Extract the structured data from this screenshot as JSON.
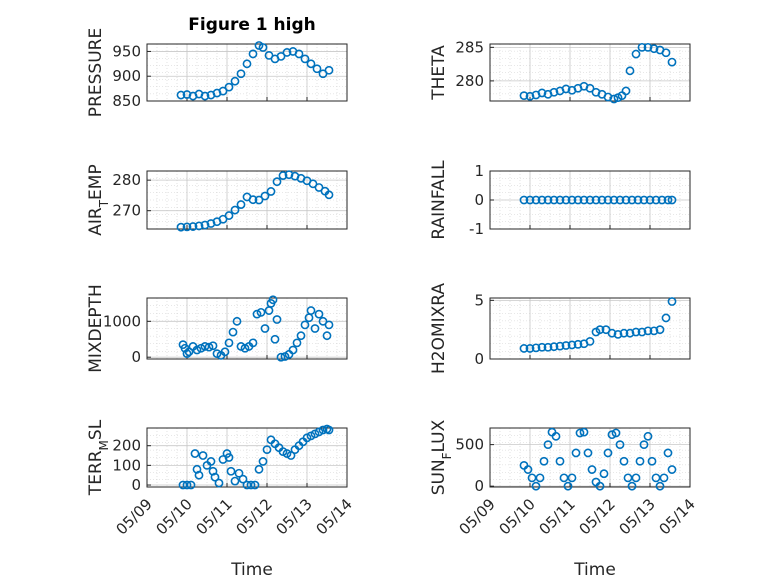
{
  "figure": {
    "title": "Figure 1 high",
    "marker_color": "#0072BD",
    "x_ticks": [
      "05/09",
      "05/10",
      "05/11",
      "05/12",
      "05/13",
      "05/14"
    ],
    "x_label": "Time"
  },
  "chart_data": [
    {
      "type": "scatter",
      "ylabel": "PRESSURE",
      "ylim": [
        850,
        965
      ],
      "yticks": [
        "850",
        "900",
        "950"
      ],
      "xlim": [
        0,
        5
      ],
      "x": [
        0.85,
        1.0,
        1.15,
        1.3,
        1.45,
        1.6,
        1.75,
        1.9,
        2.05,
        2.2,
        2.35,
        2.5,
        2.65,
        2.8,
        2.9,
        3.05,
        3.2,
        3.35,
        3.5,
        3.65,
        3.8,
        3.95,
        4.1,
        4.25,
        4.4,
        4.55
      ],
      "y": [
        862,
        863,
        860,
        864,
        860,
        862,
        866,
        870,
        878,
        890,
        905,
        925,
        945,
        962,
        958,
        942,
        935,
        940,
        948,
        950,
        945,
        935,
        925,
        915,
        905,
        912
      ]
    },
    {
      "type": "scatter",
      "ylabel": "THETA",
      "ylim": [
        277,
        285.5
      ],
      "yticks": [
        "280",
        "285"
      ],
      "xlim": [
        0,
        5
      ],
      "x": [
        0.85,
        1.0,
        1.15,
        1.3,
        1.45,
        1.6,
        1.75,
        1.9,
        2.05,
        2.2,
        2.35,
        2.5,
        2.65,
        2.8,
        2.95,
        3.1,
        3.2,
        3.3,
        3.4,
        3.5,
        3.65,
        3.8,
        3.95,
        4.1,
        4.25,
        4.4,
        4.55
      ],
      "y": [
        277.8,
        277.7,
        277.9,
        278.2,
        278.0,
        278.3,
        278.5,
        278.8,
        278.6,
        278.9,
        279.2,
        278.9,
        278.3,
        278.0,
        277.6,
        277.3,
        277.5,
        277.8,
        278.5,
        281.5,
        284.0,
        285.0,
        285.0,
        284.8,
        284.6,
        284.2,
        282.8
      ]
    },
    {
      "type": "scatter",
      "ylabel": "AIR_TEMP",
      "ylim": [
        264,
        283
      ],
      "yticks": [
        "270",
        "280"
      ],
      "xlim": [
        0,
        5
      ],
      "x": [
        0.85,
        1.0,
        1.15,
        1.3,
        1.45,
        1.6,
        1.75,
        1.9,
        2.05,
        2.2,
        2.35,
        2.5,
        2.65,
        2.8,
        2.95,
        3.1,
        3.25,
        3.4,
        3.55,
        3.7,
        3.85,
        4.0,
        4.15,
        4.3,
        4.45,
        4.55
      ],
      "y": [
        264.6,
        264.7,
        264.8,
        265.0,
        265.3,
        265.8,
        266.4,
        267.2,
        268.4,
        270.2,
        272.0,
        274.5,
        273.6,
        273.5,
        274.8,
        276.3,
        279.5,
        281.5,
        281.8,
        281.3,
        280.6,
        279.8,
        278.8,
        277.6,
        276.4,
        275.2
      ]
    },
    {
      "type": "scatter",
      "ylabel": "RAINFALL",
      "ylim": [
        -1,
        1
      ],
      "yticks": [
        "-1",
        "0",
        "1"
      ],
      "xlim": [
        0,
        5
      ],
      "x": [
        0.85,
        1.0,
        1.15,
        1.3,
        1.45,
        1.6,
        1.75,
        1.9,
        2.05,
        2.2,
        2.35,
        2.5,
        2.65,
        2.8,
        2.95,
        3.1,
        3.25,
        3.4,
        3.55,
        3.7,
        3.85,
        4.0,
        4.15,
        4.3,
        4.45,
        4.55
      ],
      "y": [
        0,
        0,
        0,
        0,
        0,
        0,
        0,
        0,
        0,
        0,
        0,
        0,
        0,
        0,
        0,
        0,
        0,
        0,
        0,
        0,
        0,
        0,
        0,
        0,
        0,
        0
      ]
    },
    {
      "type": "scatter",
      "ylabel": "MIXDEPTH",
      "ylim": [
        -50,
        1650
      ],
      "yticks": [
        "0",
        "1000"
      ],
      "xlim": [
        0,
        5
      ],
      "x": [
        0.9,
        0.95,
        1.0,
        1.05,
        1.15,
        1.25,
        1.35,
        1.45,
        1.55,
        1.65,
        1.75,
        1.85,
        1.95,
        2.05,
        2.15,
        2.25,
        2.35,
        2.45,
        2.55,
        2.65,
        2.75,
        2.85,
        2.95,
        3.05,
        3.1,
        3.15,
        3.2,
        3.25,
        3.35,
        3.45,
        3.55,
        3.65,
        3.75,
        3.85,
        3.95,
        4.05,
        4.1,
        4.2,
        4.3,
        4.4,
        4.5,
        4.55
      ],
      "y": [
        350,
        250,
        100,
        150,
        300,
        200,
        250,
        300,
        280,
        320,
        100,
        50,
        150,
        400,
        700,
        1000,
        300,
        250,
        300,
        400,
        1200,
        1250,
        800,
        1300,
        1500,
        1600,
        500,
        1050,
        0,
        20,
        80,
        200,
        400,
        600,
        900,
        1100,
        1300,
        800,
        1200,
        1000,
        600,
        900
      ]
    },
    {
      "type": "scatter",
      "ylabel": "H2OMIXRA",
      "ylim": [
        0,
        5.2
      ],
      "yticks": [
        "0",
        "5"
      ],
      "xlim": [
        0,
        5
      ],
      "x": [
        0.85,
        1.0,
        1.15,
        1.3,
        1.45,
        1.6,
        1.75,
        1.9,
        2.05,
        2.2,
        2.35,
        2.5,
        2.65,
        2.75,
        2.9,
        3.05,
        3.2,
        3.35,
        3.5,
        3.65,
        3.8,
        3.95,
        4.1,
        4.25,
        4.4,
        4.55
      ],
      "y": [
        0.9,
        0.9,
        0.95,
        1.0,
        1.0,
        1.05,
        1.1,
        1.15,
        1.2,
        1.25,
        1.3,
        1.5,
        2.3,
        2.5,
        2.5,
        2.2,
        2.1,
        2.2,
        2.2,
        2.3,
        2.3,
        2.4,
        2.4,
        2.5,
        3.5,
        4.9
      ]
    },
    {
      "type": "scatter",
      "ylabel": "TERR_MSL",
      "ylim": [
        -10,
        290
      ],
      "yticks": [
        "0",
        "100",
        "200"
      ],
      "xlim": [
        0,
        5
      ],
      "x": [
        0.9,
        1.0,
        1.1,
        1.2,
        1.25,
        1.3,
        1.4,
        1.5,
        1.6,
        1.65,
        1.7,
        1.8,
        1.9,
        2.0,
        2.05,
        2.1,
        2.2,
        2.3,
        2.4,
        2.5,
        2.6,
        2.7,
        2.8,
        2.9,
        3.0,
        3.1,
        3.2,
        3.3,
        3.4,
        3.5,
        3.6,
        3.7,
        3.8,
        3.9,
        4.0,
        4.1,
        4.2,
        4.3,
        4.4,
        4.5,
        4.55
      ],
      "y": [
        0,
        0,
        0,
        160,
        80,
        50,
        150,
        100,
        120,
        70,
        40,
        10,
        130,
        160,
        140,
        70,
        20,
        60,
        30,
        0,
        0,
        0,
        80,
        120,
        180,
        230,
        210,
        190,
        170,
        160,
        150,
        180,
        200,
        220,
        240,
        250,
        260,
        270,
        280,
        285,
        280
      ]
    },
    {
      "type": "scatter",
      "ylabel": "SUN_FLUX",
      "ylim": [
        -10,
        700
      ],
      "yticks": [
        "0",
        "500"
      ],
      "xlim": [
        0,
        5
      ],
      "x": [
        0.85,
        0.95,
        1.05,
        1.15,
        1.25,
        1.35,
        1.45,
        1.55,
        1.65,
        1.75,
        1.85,
        1.95,
        2.05,
        2.15,
        2.25,
        2.35,
        2.45,
        2.55,
        2.65,
        2.75,
        2.85,
        2.95,
        3.05,
        3.15,
        3.25,
        3.35,
        3.45,
        3.55,
        3.65,
        3.75,
        3.85,
        3.95,
        4.05,
        4.15,
        4.25,
        4.35,
        4.45,
        4.55
      ],
      "y": [
        250,
        200,
        100,
        0,
        100,
        300,
        500,
        650,
        600,
        300,
        100,
        0,
        100,
        400,
        640,
        650,
        400,
        200,
        50,
        0,
        150,
        400,
        620,
        640,
        500,
        300,
        100,
        0,
        100,
        300,
        500,
        600,
        300,
        100,
        0,
        100,
        400,
        200
      ]
    }
  ]
}
